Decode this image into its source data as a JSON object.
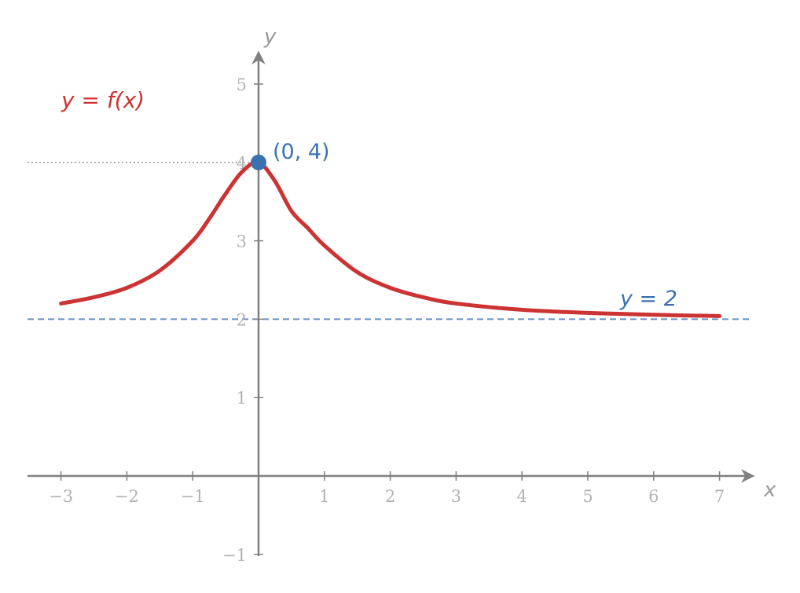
{
  "chart_data": {
    "type": "line",
    "title": "",
    "xlabel": "x",
    "ylabel": "y",
    "xlim": [
      -3.5,
      7.5
    ],
    "ylim": [
      -1.2,
      5.4
    ],
    "xticks": [
      -3,
      -2,
      -1,
      1,
      2,
      3,
      4,
      5,
      6,
      7
    ],
    "yticks": [
      -1,
      1,
      2,
      3,
      4,
      5
    ],
    "xtick_labels": [
      "−3",
      "−2",
      "−1",
      "1",
      "2",
      "3",
      "4",
      "5",
      "6",
      "7"
    ],
    "ytick_labels": [
      "−1",
      "1",
      "2",
      "3",
      "4",
      "5"
    ],
    "grid": false,
    "series": [
      {
        "name": "y = f(x)",
        "color": "#cc3333",
        "x": [
          -3,
          -2.5,
          -2,
          -1.5,
          -1,
          -0.75,
          -0.5,
          -0.25,
          0,
          0.25,
          0.5,
          0.75,
          1,
          1.5,
          2,
          2.5,
          3,
          4,
          5,
          6,
          7
        ],
        "y": [
          2.2,
          2.28,
          2.4,
          2.62,
          3.0,
          3.28,
          3.6,
          3.88,
          4.0,
          3.76,
          3.38,
          3.16,
          2.94,
          2.6,
          2.4,
          2.28,
          2.2,
          2.12,
          2.08,
          2.056,
          2.04
        ]
      }
    ],
    "asymptote": {
      "y": 2,
      "label": "y = 2",
      "color": "#6a8fc4"
    },
    "reference_line": {
      "y": 4,
      "color": "#999999"
    },
    "point": {
      "x": 0,
      "y": 4,
      "label": "(0, 4)",
      "color": "#3a72b0"
    }
  }
}
